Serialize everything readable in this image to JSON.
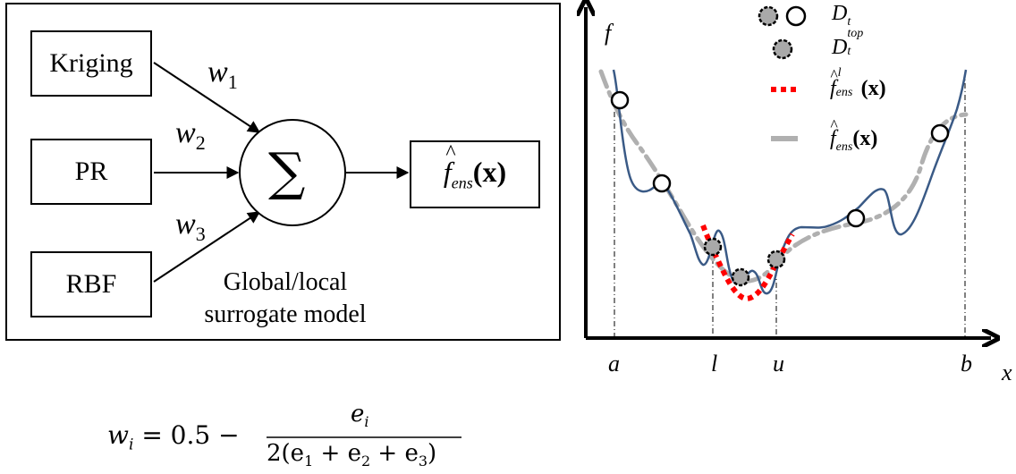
{
  "diagram": {
    "inputs": [
      "Kriging",
      "PR",
      "RBF"
    ],
    "weights": [
      {
        "base": "w",
        "sub": "1"
      },
      {
        "base": "w",
        "sub": "2"
      },
      {
        "base": "w",
        "sub": "3"
      }
    ],
    "sum_symbol": "∑",
    "output": {
      "hat": "^",
      "f": "f",
      "sub": "ens",
      "arg": "(x)"
    },
    "caption_line1": "Global/local",
    "caption_line2": "surrogate model"
  },
  "plot": {
    "y_axis_label": "f",
    "x_axis_label": "x",
    "x_ticks": [
      "a",
      "l",
      "u",
      "b"
    ],
    "legend": [
      {
        "key": "dt",
        "text": "D",
        "sub": "t",
        "sup": ""
      },
      {
        "key": "dtop",
        "text": "D",
        "sub": "t",
        "sup": "top"
      },
      {
        "key": "local",
        "hat": "^",
        "text": "f",
        "sup": "l",
        "sub": "ens",
        "arg": "(x)"
      },
      {
        "key": "global",
        "hat": "^",
        "text": "f",
        "sub": "ens",
        "arg": "(x)"
      }
    ],
    "colors": {
      "true_fn": "#3a5a86",
      "local_model": "#ff0000",
      "global_model": "#b0b0b0",
      "top_point": "#a9a9a9"
    }
  },
  "formula": {
    "lhs": "w",
    "lhs_sub": "i",
    "eq": "= 0.5 −",
    "num": "e",
    "num_sub": "i",
    "den": "2(e",
    "den_parts": [
      "1",
      " + e",
      "2",
      " + e",
      "3",
      ")"
    ]
  }
}
